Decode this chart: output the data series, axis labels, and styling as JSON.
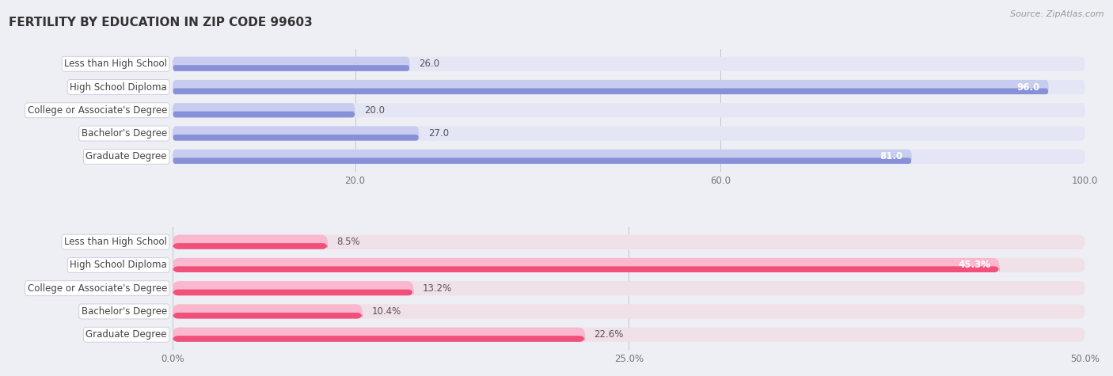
{
  "title": "FERTILITY BY EDUCATION IN ZIP CODE 99603",
  "source": "Source: ZipAtlas.com",
  "top_section": {
    "categories": [
      "Less than High School",
      "High School Diploma",
      "College or Associate's Degree",
      "Bachelor's Degree",
      "Graduate Degree"
    ],
    "values": [
      26.0,
      96.0,
      20.0,
      27.0,
      81.0
    ],
    "x_ticks": [
      20.0,
      60.0,
      100.0
    ],
    "x_max": 100.0,
    "bar_color_light": "#c8cdf0",
    "bar_color_dark": "#8890d8",
    "bg_bar_color": "#e4e6f5",
    "label_color_outside": "#666666",
    "label_color_inside": "#ffffff",
    "threshold_inside": 55.0,
    "value_suffix": ""
  },
  "bottom_section": {
    "categories": [
      "Less than High School",
      "High School Diploma",
      "College or Associate's Degree",
      "Bachelor's Degree",
      "Graduate Degree"
    ],
    "values": [
      8.5,
      45.3,
      13.2,
      10.4,
      22.6
    ],
    "x_ticks": [
      0.0,
      25.0,
      50.0
    ],
    "x_max": 50.0,
    "bar_color_light": "#f9b8ce",
    "bar_color_dark": "#f0507a",
    "bg_bar_color": "#f0e0e8",
    "label_color_outside": "#666666",
    "label_color_inside": "#ffffff",
    "threshold_inside": 35.0,
    "value_suffix": "%"
  },
  "bg_color": "#eeeef5",
  "bar_bg_color": "#e4e6f5",
  "label_box_color": "#ffffff",
  "label_box_border": "#cccccc",
  "title_fontsize": 11,
  "source_fontsize": 8,
  "tick_fontsize": 8.5,
  "bar_label_fontsize": 8.5,
  "category_fontsize": 8.5,
  "bar_height": 0.62,
  "bar_spacing": 1.0
}
